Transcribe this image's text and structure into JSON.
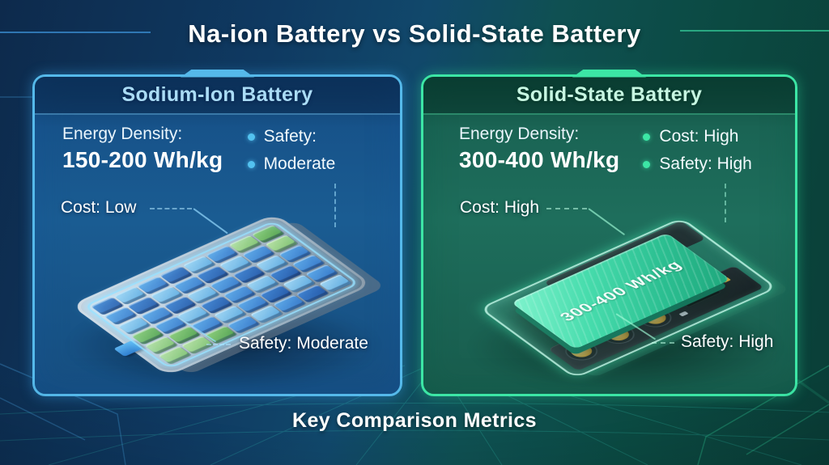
{
  "title": "Na-ion Battery vs Solid-State Battery",
  "footer": "Key Comparison Metrics",
  "left_panel": {
    "title": "Sodium-Ion Battery",
    "energy_density_label": "Energy Density:",
    "energy_density_value": "150-200 Wh/kg",
    "bullets": [
      {
        "label": "Safety:"
      },
      {
        "label": "Moderate"
      }
    ],
    "cost_callout": "Cost: Low",
    "safety_callout": "Safety: Moderate"
  },
  "right_panel": {
    "title": "Solid-State Battery",
    "energy_density_label": "Energy Density:",
    "energy_density_value": "300-400 Wh/kg",
    "bullets": [
      {
        "label": "Cost: High"
      },
      {
        "label": "Safety: High"
      }
    ],
    "cost_callout": "Cost: High",
    "safety_callout": "Safety: High",
    "battery_label": "300-400 Wh/kg"
  },
  "colors": {
    "left_accent": "#55b9ea",
    "right_accent": "#3ce6a5",
    "background_left": "#0d2a4c",
    "background_right": "#0a3e37"
  }
}
